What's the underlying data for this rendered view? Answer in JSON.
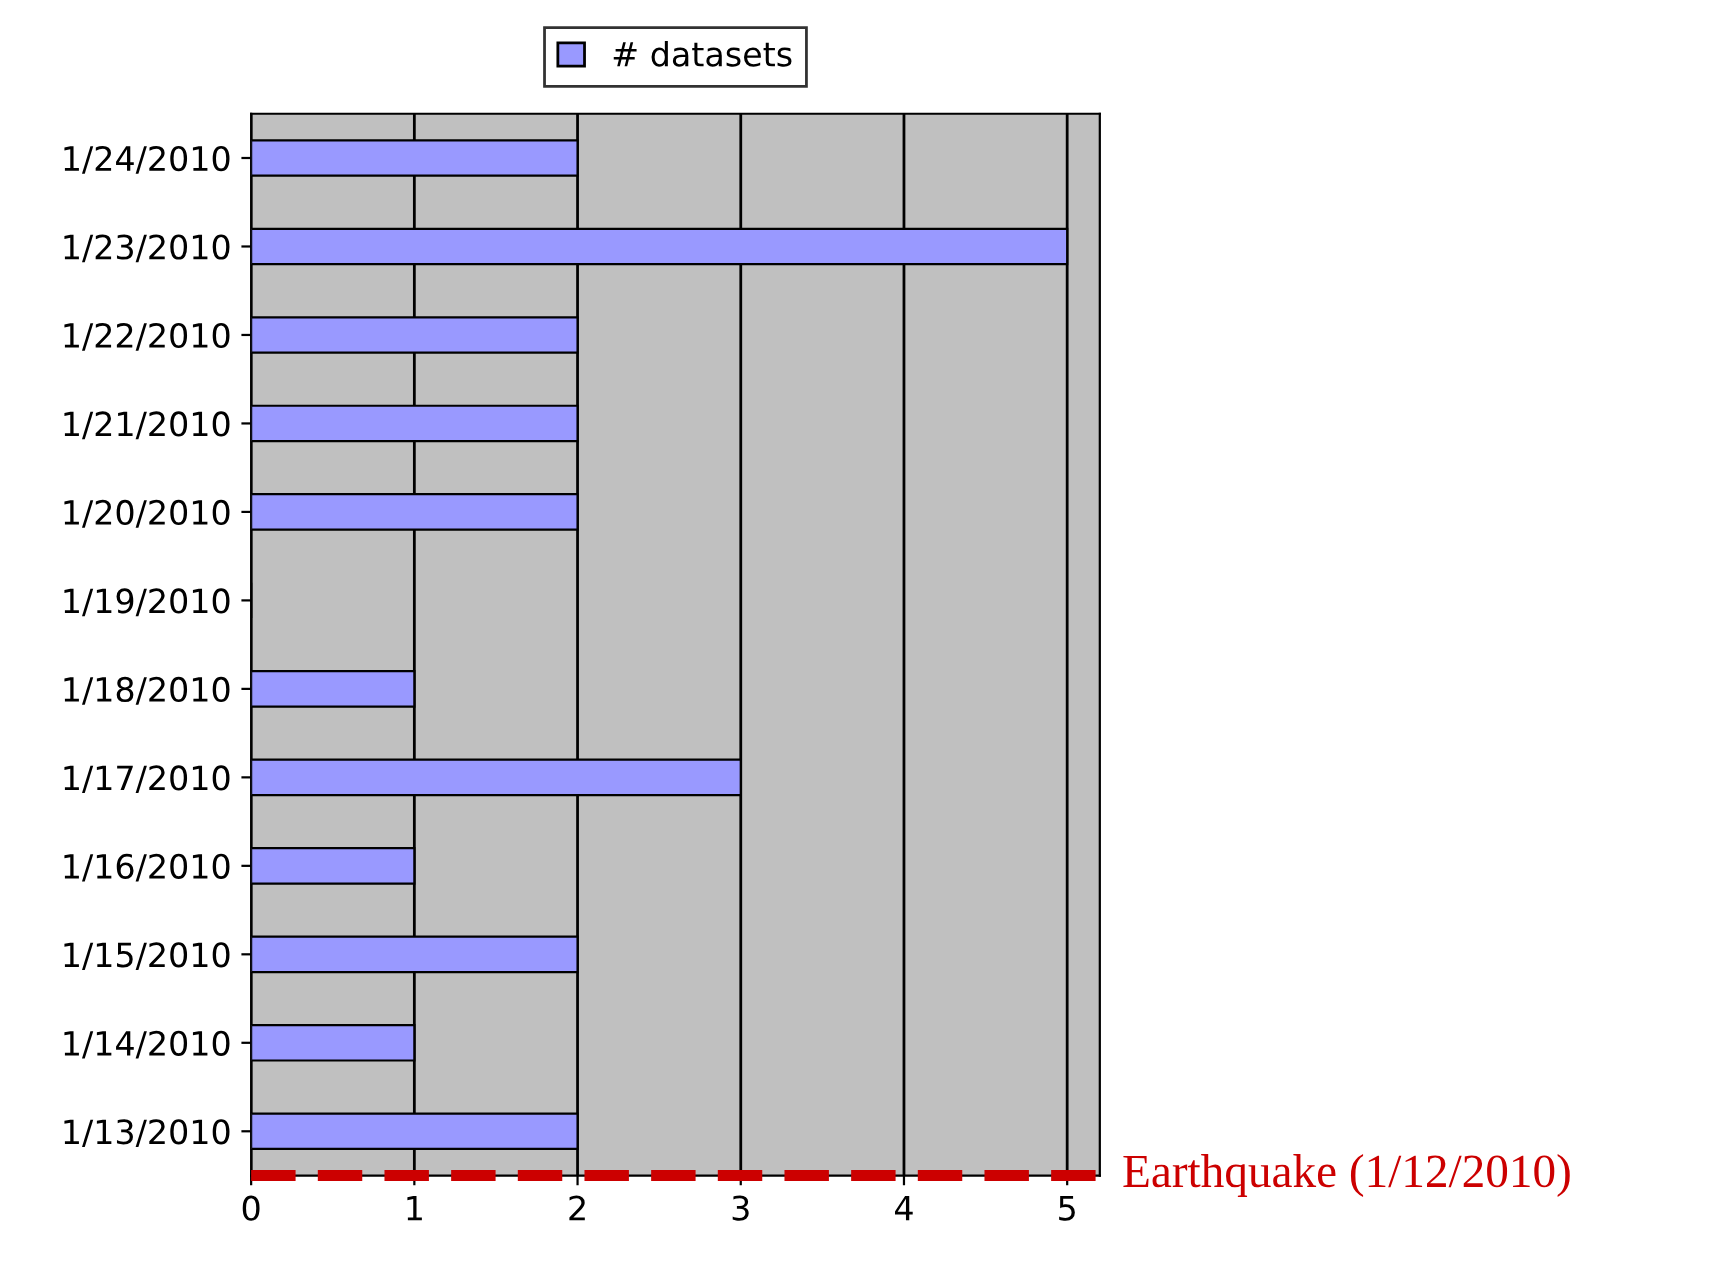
{
  "chart_data": {
    "type": "bar",
    "orientation": "horizontal",
    "categories": [
      "1/24/2010",
      "1/23/2010",
      "1/22/2010",
      "1/21/2010",
      "1/20/2010",
      "1/19/2010",
      "1/18/2010",
      "1/17/2010",
      "1/16/2010",
      "1/15/2010",
      "1/14/2010",
      "1/13/2010"
    ],
    "series": [
      {
        "name": "# datasets",
        "color": "#9999ff",
        "values": [
          2,
          5,
          2,
          2,
          2,
          0,
          1,
          3,
          1,
          2,
          1,
          2
        ]
      }
    ],
    "xlim": [
      0,
      5.2
    ],
    "xticks": [
      0,
      1,
      2,
      3,
      4,
      5
    ],
    "grid": "x",
    "legend": "top",
    "ref_lines": [
      {
        "axis": "y",
        "label": "Earthquake (1/12/2010)",
        "color": "#cc0000",
        "line_style": "dashed"
      }
    ]
  }
}
